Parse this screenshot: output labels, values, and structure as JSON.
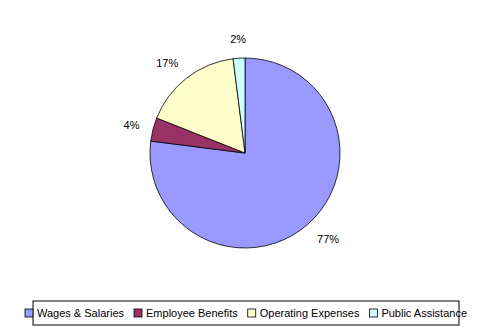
{
  "chart_data": {
    "type": "pie",
    "categories": [
      "Wages & Salaries",
      "Employee Benefits",
      "Operating Expenses",
      "Public Assistance"
    ],
    "values": [
      77,
      4,
      17,
      2
    ],
    "value_labels": [
      "77%",
      "4%",
      "17%",
      "2%"
    ],
    "colors": [
      "#9999ff",
      "#993366",
      "#ffffcc",
      "#ccffff"
    ],
    "data_labels": true,
    "legend": "bottom"
  }
}
